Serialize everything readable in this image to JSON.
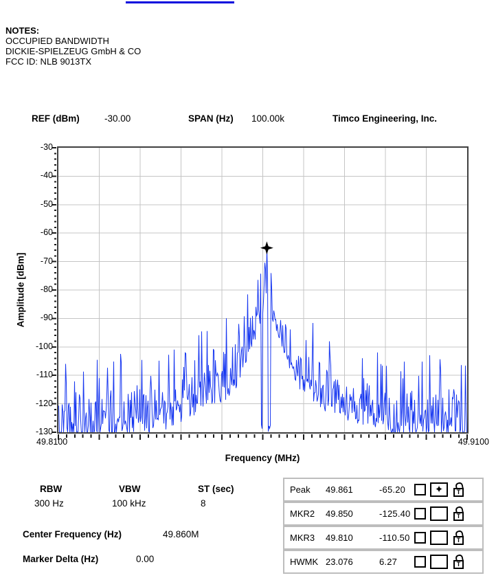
{
  "top_link": {
    "underline_color": "#0000dd"
  },
  "notes": {
    "title": "NOTES:",
    "lines": [
      "OCCUPIED BANDWIDTH",
      "DICKIE-SPIELZEUG GmbH & CO",
      "FCC ID: NLB 9013TX"
    ]
  },
  "chart_header": {
    "ref_label": "REF (dBm)",
    "ref_value": "-30.00",
    "span_label": "SPAN (Hz)",
    "span_value": "100.00k",
    "company": "Timco Engineering, Inc."
  },
  "chart_data": {
    "type": "line",
    "title": "",
    "xlabel": "Frequency (MHz)",
    "ylabel": "Amplitude [dBm]",
    "xlim": [
      49.81,
      49.91
    ],
    "ylim": [
      -130,
      -30
    ],
    "x_tick_labels": [
      "49.8100",
      "49.9100"
    ],
    "y_tick_start": -30,
    "y_tick_step": -10,
    "y_tick_count": 11,
    "x_divisions": 10,
    "y_divisions": 10,
    "x_minor_per_div": 5,
    "y_minor_per_div": 5,
    "grid": true,
    "grid_color": "#c4c4c4",
    "border_color": "#3f3f3f",
    "tick_color": "#1a1a1a",
    "trace_color": "#1636f0",
    "marker_color": "#000000",
    "peak": {
      "freq_mhz": 49.861,
      "level_dbm": -65.2
    },
    "markers_plotted": [
      {
        "freq_mhz": 49.861,
        "level_dbm": -65.2,
        "symbol": "four-point-star"
      }
    ],
    "n_points": 595,
    "noise_seed": 20130913,
    "noise_floor_range_dbm": [
      -130,
      -104
    ],
    "envelope_max_dbm_by_offset_khz": [
      [
        0,
        -65.2
      ],
      [
        0.4,
        -67.5
      ],
      [
        1,
        -70
      ],
      [
        2,
        -73.5
      ],
      [
        3,
        -75.5
      ],
      [
        5,
        -78.5
      ],
      [
        8,
        -83
      ],
      [
        12,
        -88
      ],
      [
        17,
        -92
      ],
      [
        24,
        -96
      ],
      [
        34,
        -99
      ],
      [
        51,
        -100.5
      ]
    ],
    "notches_mhz": [
      [
        49.8596,
        49.8599
      ],
      [
        49.8613,
        49.8619
      ]
    ]
  },
  "settings": {
    "rbw_label": "RBW",
    "rbw_value": "300 Hz",
    "vbw_label": "VBW",
    "vbw_value": "100 kHz",
    "st_label": "ST (sec)",
    "st_value": "8",
    "center_freq_label": "Center Frequency (Hz)",
    "center_freq_value": "49.860M",
    "marker_delta_label": "Marker Delta (Hz)",
    "marker_delta_value": "0.00"
  },
  "markers": {
    "rows": [
      {
        "label": "Peak",
        "freq": "49.861",
        "level": "-65.20",
        "checked": false,
        "symbol": "four-point-star",
        "locked": false
      },
      {
        "label": "MKR2",
        "freq": "49.850",
        "level": "-125.40",
        "checked": false,
        "symbol": "",
        "locked": false
      },
      {
        "label": "MKR3",
        "freq": "49.810",
        "level": "-110.50",
        "checked": false,
        "symbol": "",
        "locked": false
      },
      {
        "label": "HWMK",
        "freq": "23.076",
        "level": "6.27",
        "checked": false,
        "symbol": "",
        "locked": false
      }
    ],
    "symbol_glyph": "✦"
  }
}
